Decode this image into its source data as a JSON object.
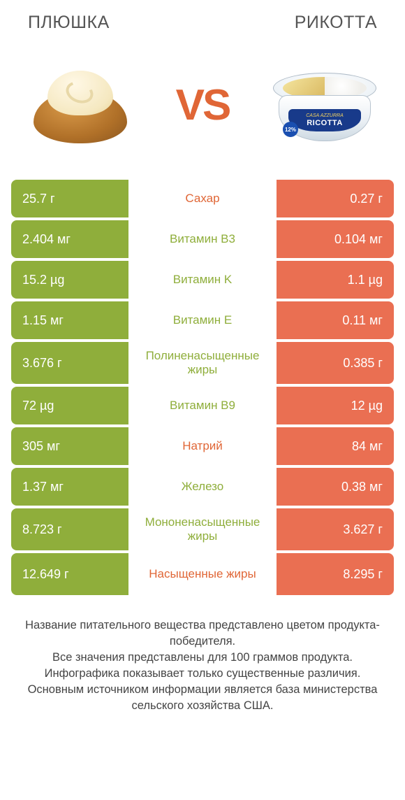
{
  "colors": {
    "left_bar": "#8fae3b",
    "right_bar": "#ea6f52",
    "nutrient_left_winner": "#8fae3b",
    "nutrient_right_winner": "#e06636",
    "vs": "#e06636",
    "background": "#ffffff"
  },
  "left_food": {
    "title": "ПЛЮШКА"
  },
  "right_food": {
    "title": "РИКОТТА"
  },
  "vs_text": "VS",
  "ricotta_pack": {
    "brand": "CASA AZZURRA",
    "product": "RICOTTA",
    "badge": "12%"
  },
  "rows": [
    {
      "left": "25.7 г",
      "name": "Сахар",
      "right": "0.27 г",
      "winner": "right",
      "tall": false
    },
    {
      "left": "2.404 мг",
      "name": "Витамин B3",
      "right": "0.104 мг",
      "winner": "left",
      "tall": false
    },
    {
      "left": "15.2 µg",
      "name": "Витамин K",
      "right": "1.1 µg",
      "winner": "left",
      "tall": false
    },
    {
      "left": "1.15 мг",
      "name": "Витамин E",
      "right": "0.11 мг",
      "winner": "left",
      "tall": false
    },
    {
      "left": "3.676 г",
      "name": "Полиненасыщенные жиры",
      "right": "0.385 г",
      "winner": "left",
      "tall": true
    },
    {
      "left": "72 µg",
      "name": "Витамин B9",
      "right": "12 µg",
      "winner": "left",
      "tall": false
    },
    {
      "left": "305 мг",
      "name": "Натрий",
      "right": "84 мг",
      "winner": "right",
      "tall": false
    },
    {
      "left": "1.37 мг",
      "name": "Железо",
      "right": "0.38 мг",
      "winner": "left",
      "tall": false
    },
    {
      "left": "8.723 г",
      "name": "Мононенасыщенные жиры",
      "right": "3.627 г",
      "winner": "left",
      "tall": true
    },
    {
      "left": "12.649 г",
      "name": "Насыщенные жиры",
      "right": "8.295 г",
      "winner": "right",
      "tall": true
    }
  ],
  "footer_lines": [
    "Название питательного вещества представлено цветом продукта-победителя.",
    "Все значения представлены для 100 граммов продукта.",
    "Инфографика показывает только существенные различия.",
    "Основным источником информации является база министерства сельского хозяйства США."
  ]
}
